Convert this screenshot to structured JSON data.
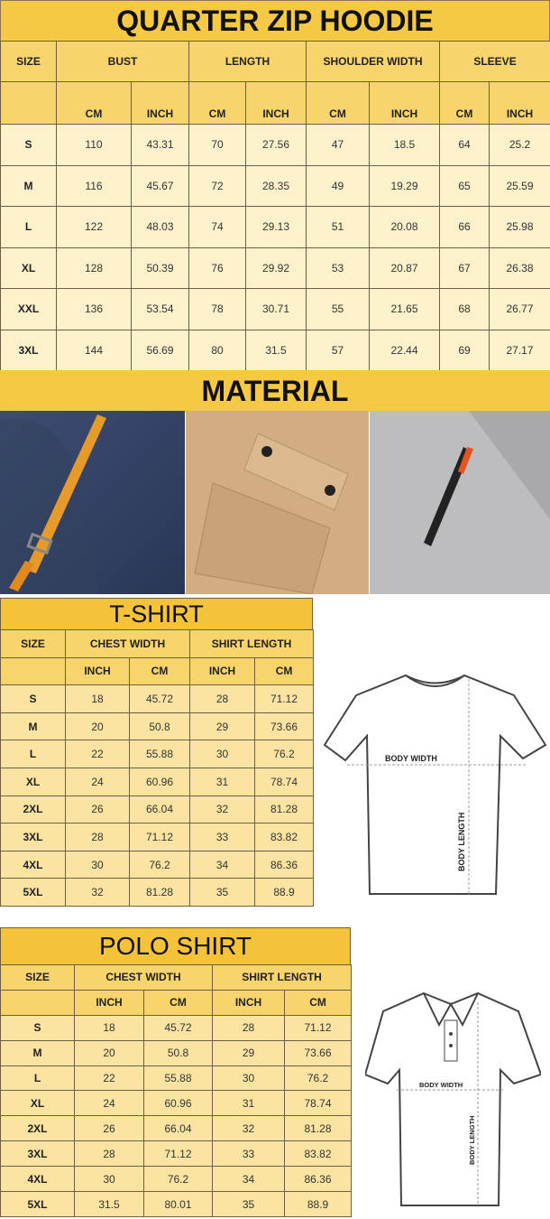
{
  "hoodie": {
    "title": "QUARTER ZIP HOODIE",
    "header": [
      "SIZE",
      "BUST",
      "LENGTH",
      "SHOULDER WIDTH",
      "SLEEVE"
    ],
    "subheader": [
      "CM",
      "INCH",
      "CM",
      "INCH",
      "CM",
      "INCH",
      "CM",
      "INCH"
    ],
    "rows": [
      [
        "S",
        "110",
        "43.31",
        "70",
        "27.56",
        "47",
        "18.5",
        "64",
        "25.2"
      ],
      [
        "M",
        "116",
        "45.67",
        "72",
        "28.35",
        "49",
        "19.29",
        "65",
        "25.59"
      ],
      [
        "L",
        "122",
        "48.03",
        "74",
        "29.13",
        "51",
        "20.08",
        "66",
        "25.98"
      ],
      [
        "XL",
        "128",
        "50.39",
        "76",
        "29.92",
        "53",
        "20.87",
        "67",
        "26.38"
      ],
      [
        "XXL",
        "136",
        "53.54",
        "78",
        "30.71",
        "55",
        "21.65",
        "68",
        "26.77"
      ],
      [
        "3XL",
        "144",
        "56.69",
        "80",
        "31.5",
        "57",
        "22.44",
        "69",
        "27.17"
      ]
    ]
  },
  "material": {
    "title": "MATERIAL",
    "photos": [
      "navy-fabric-with-orange-strap",
      "khaki-fabric-with-pocket-flap",
      "grey-fabric-with-zipper"
    ]
  },
  "tshirt": {
    "title": "T-SHIRT",
    "header": [
      "SIZE",
      "CHEST WIDTH",
      "SHIRT LENGTH"
    ],
    "subheader": [
      "INCH",
      "CM",
      "INCH",
      "CM"
    ],
    "rows": [
      [
        "S",
        "18",
        "45.72",
        "28",
        "71.12"
      ],
      [
        "M",
        "20",
        "50.8",
        "29",
        "73.66"
      ],
      [
        "L",
        "22",
        "55.88",
        "30",
        "76.2"
      ],
      [
        "XL",
        "24",
        "60.96",
        "31",
        "78.74"
      ],
      [
        "2XL",
        "26",
        "66.04",
        "32",
        "81.28"
      ],
      [
        "3XL",
        "28",
        "71.12",
        "33",
        "83.82"
      ],
      [
        "4XL",
        "30",
        "76.2",
        "34",
        "86.36"
      ],
      [
        "5XL",
        "32",
        "81.28",
        "35",
        "88.9"
      ]
    ],
    "diagram": {
      "width_label": "BODY WIDTH",
      "length_label": "BODY LENGTH"
    }
  },
  "polo": {
    "title": "POLO SHIRT",
    "header": [
      "SIZE",
      "CHEST WIDTH",
      "SHIRT LENGTH"
    ],
    "subheader": [
      "INCH",
      "CM",
      "INCH",
      "CM"
    ],
    "rows": [
      [
        "S",
        "18",
        "45.72",
        "28",
        "71.12"
      ],
      [
        "M",
        "20",
        "50.8",
        "29",
        "73.66"
      ],
      [
        "L",
        "22",
        "55.88",
        "30",
        "76.2"
      ],
      [
        "XL",
        "24",
        "60.96",
        "31",
        "78.74"
      ],
      [
        "2XL",
        "26",
        "66.04",
        "32",
        "81.28"
      ],
      [
        "3XL",
        "28",
        "71.12",
        "33",
        "83.82"
      ],
      [
        "4XL",
        "30",
        "76.2",
        "34",
        "86.36"
      ],
      [
        "5XL",
        "31.5",
        "80.01",
        "35",
        "88.9"
      ]
    ],
    "diagram": {
      "width_label": "BODY WIDTH",
      "length_label": "BODY LENGTH"
    }
  },
  "colors": {
    "title": "#f6c945",
    "header": "#f7d46c",
    "hoodie_cell": "#fdf1cc",
    "shirt_cell": "#fbe4a2"
  }
}
